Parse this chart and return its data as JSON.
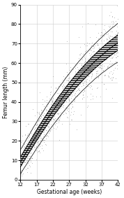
{
  "title": "",
  "xlabel": "Gestational age (weeks)",
  "ylabel": "Femur length (mm)",
  "xlim": [
    12,
    42
  ],
  "ylim": [
    0,
    90
  ],
  "xticks": [
    12,
    17,
    22,
    27,
    32,
    37,
    42
  ],
  "yticks": [
    0,
    10,
    20,
    30,
    40,
    50,
    60,
    70,
    80,
    90
  ],
  "background_color": "#ffffff",
  "grid_color": "#cccccc",
  "line_color": "#000000",
  "scatter_color": "#888888",
  "ga_weeks": [
    12,
    13,
    14,
    15,
    16,
    17,
    18,
    19,
    20,
    21,
    22,
    23,
    24,
    25,
    26,
    27,
    28,
    29,
    30,
    31,
    32,
    33,
    34,
    35,
    36,
    37,
    38,
    39,
    40,
    41,
    42
  ],
  "fl_mean": [
    9.0,
    11.8,
    14.6,
    17.3,
    20.1,
    22.8,
    25.4,
    28.0,
    30.5,
    33.0,
    35.4,
    37.7,
    40.0,
    42.2,
    44.4,
    46.5,
    48.5,
    50.5,
    52.4,
    54.2,
    56.0,
    57.7,
    59.4,
    61.0,
    62.5,
    64.0,
    65.4,
    66.8,
    68.1,
    69.3,
    70.5
  ],
  "fl_sd": [
    2.5,
    2.5,
    2.6,
    2.6,
    2.7,
    2.7,
    2.8,
    2.8,
    2.9,
    2.9,
    3.0,
    3.0,
    3.1,
    3.1,
    3.2,
    3.2,
    3.3,
    3.3,
    3.4,
    3.4,
    3.5,
    3.5,
    3.6,
    3.6,
    3.7,
    3.7,
    3.8,
    3.8,
    3.9,
    3.9,
    4.0
  ],
  "figsize": [
    1.78,
    2.83
  ],
  "dpi": 100
}
